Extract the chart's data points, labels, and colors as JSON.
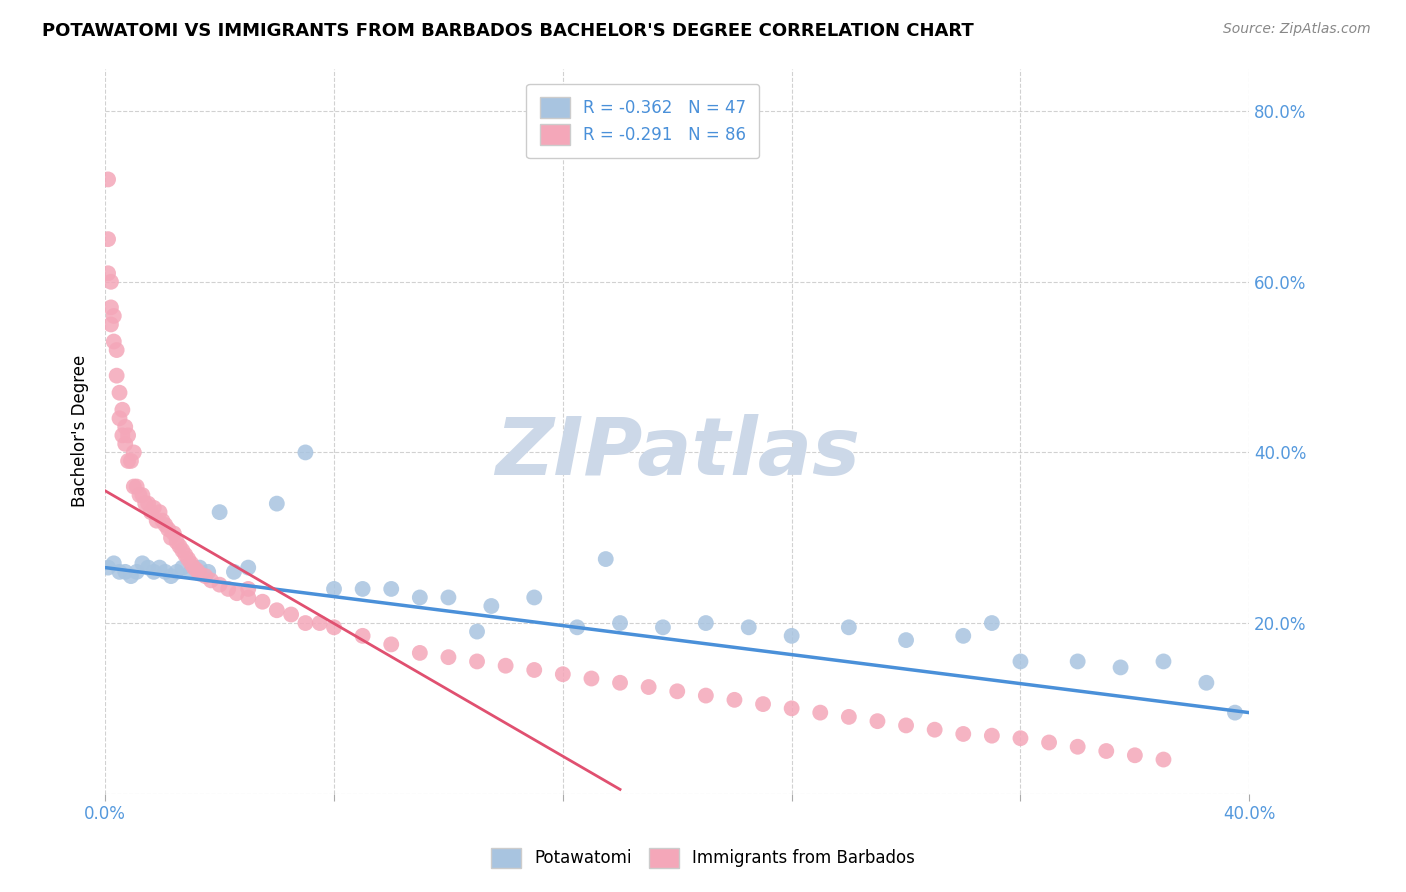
{
  "title": "POTAWATOMI VS IMMIGRANTS FROM BARBADOS BACHELOR'S DEGREE CORRELATION CHART",
  "source_text": "Source: ZipAtlas.com",
  "ylabel": "Bachelor's Degree",
  "xlim": [
    0.0,
    0.4
  ],
  "ylim": [
    0.0,
    0.85
  ],
  "blue_R": -0.362,
  "blue_N": 47,
  "pink_R": -0.291,
  "pink_N": 86,
  "blue_color": "#a8c4e0",
  "pink_color": "#f4a7b9",
  "blue_line_color": "#4a90d9",
  "pink_line_color": "#e05070",
  "watermark": "ZIPatlas",
  "watermark_color": "#ccd8e8",
  "blue_scatter_x": [
    0.001,
    0.003,
    0.005,
    0.007,
    0.009,
    0.011,
    0.013,
    0.015,
    0.017,
    0.019,
    0.021,
    0.023,
    0.025,
    0.027,
    0.03,
    0.033,
    0.036,
    0.04,
    0.045,
    0.05,
    0.06,
    0.07,
    0.08,
    0.09,
    0.1,
    0.11,
    0.12,
    0.135,
    0.15,
    0.165,
    0.18,
    0.195,
    0.21,
    0.225,
    0.24,
    0.26,
    0.28,
    0.3,
    0.32,
    0.34,
    0.355,
    0.37,
    0.385,
    0.395,
    0.31,
    0.175,
    0.13
  ],
  "blue_scatter_y": [
    0.265,
    0.27,
    0.26,
    0.26,
    0.255,
    0.26,
    0.27,
    0.265,
    0.26,
    0.265,
    0.26,
    0.255,
    0.26,
    0.265,
    0.26,
    0.265,
    0.26,
    0.33,
    0.26,
    0.265,
    0.34,
    0.4,
    0.24,
    0.24,
    0.24,
    0.23,
    0.23,
    0.22,
    0.23,
    0.195,
    0.2,
    0.195,
    0.2,
    0.195,
    0.185,
    0.195,
    0.18,
    0.185,
    0.155,
    0.155,
    0.148,
    0.155,
    0.13,
    0.095,
    0.2,
    0.275,
    0.19
  ],
  "pink_scatter_x": [
    0.001,
    0.001,
    0.001,
    0.002,
    0.002,
    0.002,
    0.003,
    0.003,
    0.004,
    0.004,
    0.005,
    0.005,
    0.006,
    0.006,
    0.007,
    0.007,
    0.008,
    0.008,
    0.009,
    0.01,
    0.01,
    0.011,
    0.012,
    0.013,
    0.014,
    0.015,
    0.016,
    0.017,
    0.018,
    0.019,
    0.02,
    0.021,
    0.022,
    0.023,
    0.024,
    0.025,
    0.026,
    0.027,
    0.028,
    0.029,
    0.03,
    0.031,
    0.032,
    0.033,
    0.035,
    0.037,
    0.04,
    0.043,
    0.046,
    0.05,
    0.055,
    0.06,
    0.065,
    0.07,
    0.08,
    0.09,
    0.1,
    0.11,
    0.12,
    0.13,
    0.14,
    0.15,
    0.16,
    0.17,
    0.18,
    0.19,
    0.2,
    0.21,
    0.22,
    0.23,
    0.24,
    0.25,
    0.26,
    0.27,
    0.28,
    0.29,
    0.3,
    0.31,
    0.32,
    0.33,
    0.34,
    0.35,
    0.36,
    0.37,
    0.05,
    0.075
  ],
  "pink_scatter_y": [
    0.72,
    0.65,
    0.61,
    0.6,
    0.57,
    0.55,
    0.56,
    0.53,
    0.52,
    0.49,
    0.47,
    0.44,
    0.45,
    0.42,
    0.43,
    0.41,
    0.42,
    0.39,
    0.39,
    0.4,
    0.36,
    0.36,
    0.35,
    0.35,
    0.34,
    0.34,
    0.33,
    0.335,
    0.32,
    0.33,
    0.32,
    0.315,
    0.31,
    0.3,
    0.305,
    0.295,
    0.29,
    0.285,
    0.28,
    0.275,
    0.27,
    0.265,
    0.262,
    0.258,
    0.255,
    0.25,
    0.245,
    0.24,
    0.235,
    0.23,
    0.225,
    0.215,
    0.21,
    0.2,
    0.195,
    0.185,
    0.175,
    0.165,
    0.16,
    0.155,
    0.15,
    0.145,
    0.14,
    0.135,
    0.13,
    0.125,
    0.12,
    0.115,
    0.11,
    0.105,
    0.1,
    0.095,
    0.09,
    0.085,
    0.08,
    0.075,
    0.07,
    0.068,
    0.065,
    0.06,
    0.055,
    0.05,
    0.045,
    0.04,
    0.24,
    0.2
  ],
  "blue_line_x0": 0.0,
  "blue_line_y0": 0.265,
  "blue_line_x1": 0.4,
  "blue_line_y1": 0.095,
  "pink_line_x0": 0.0,
  "pink_line_y0": 0.355,
  "pink_line_x1": 0.18,
  "pink_line_y1": 0.005
}
